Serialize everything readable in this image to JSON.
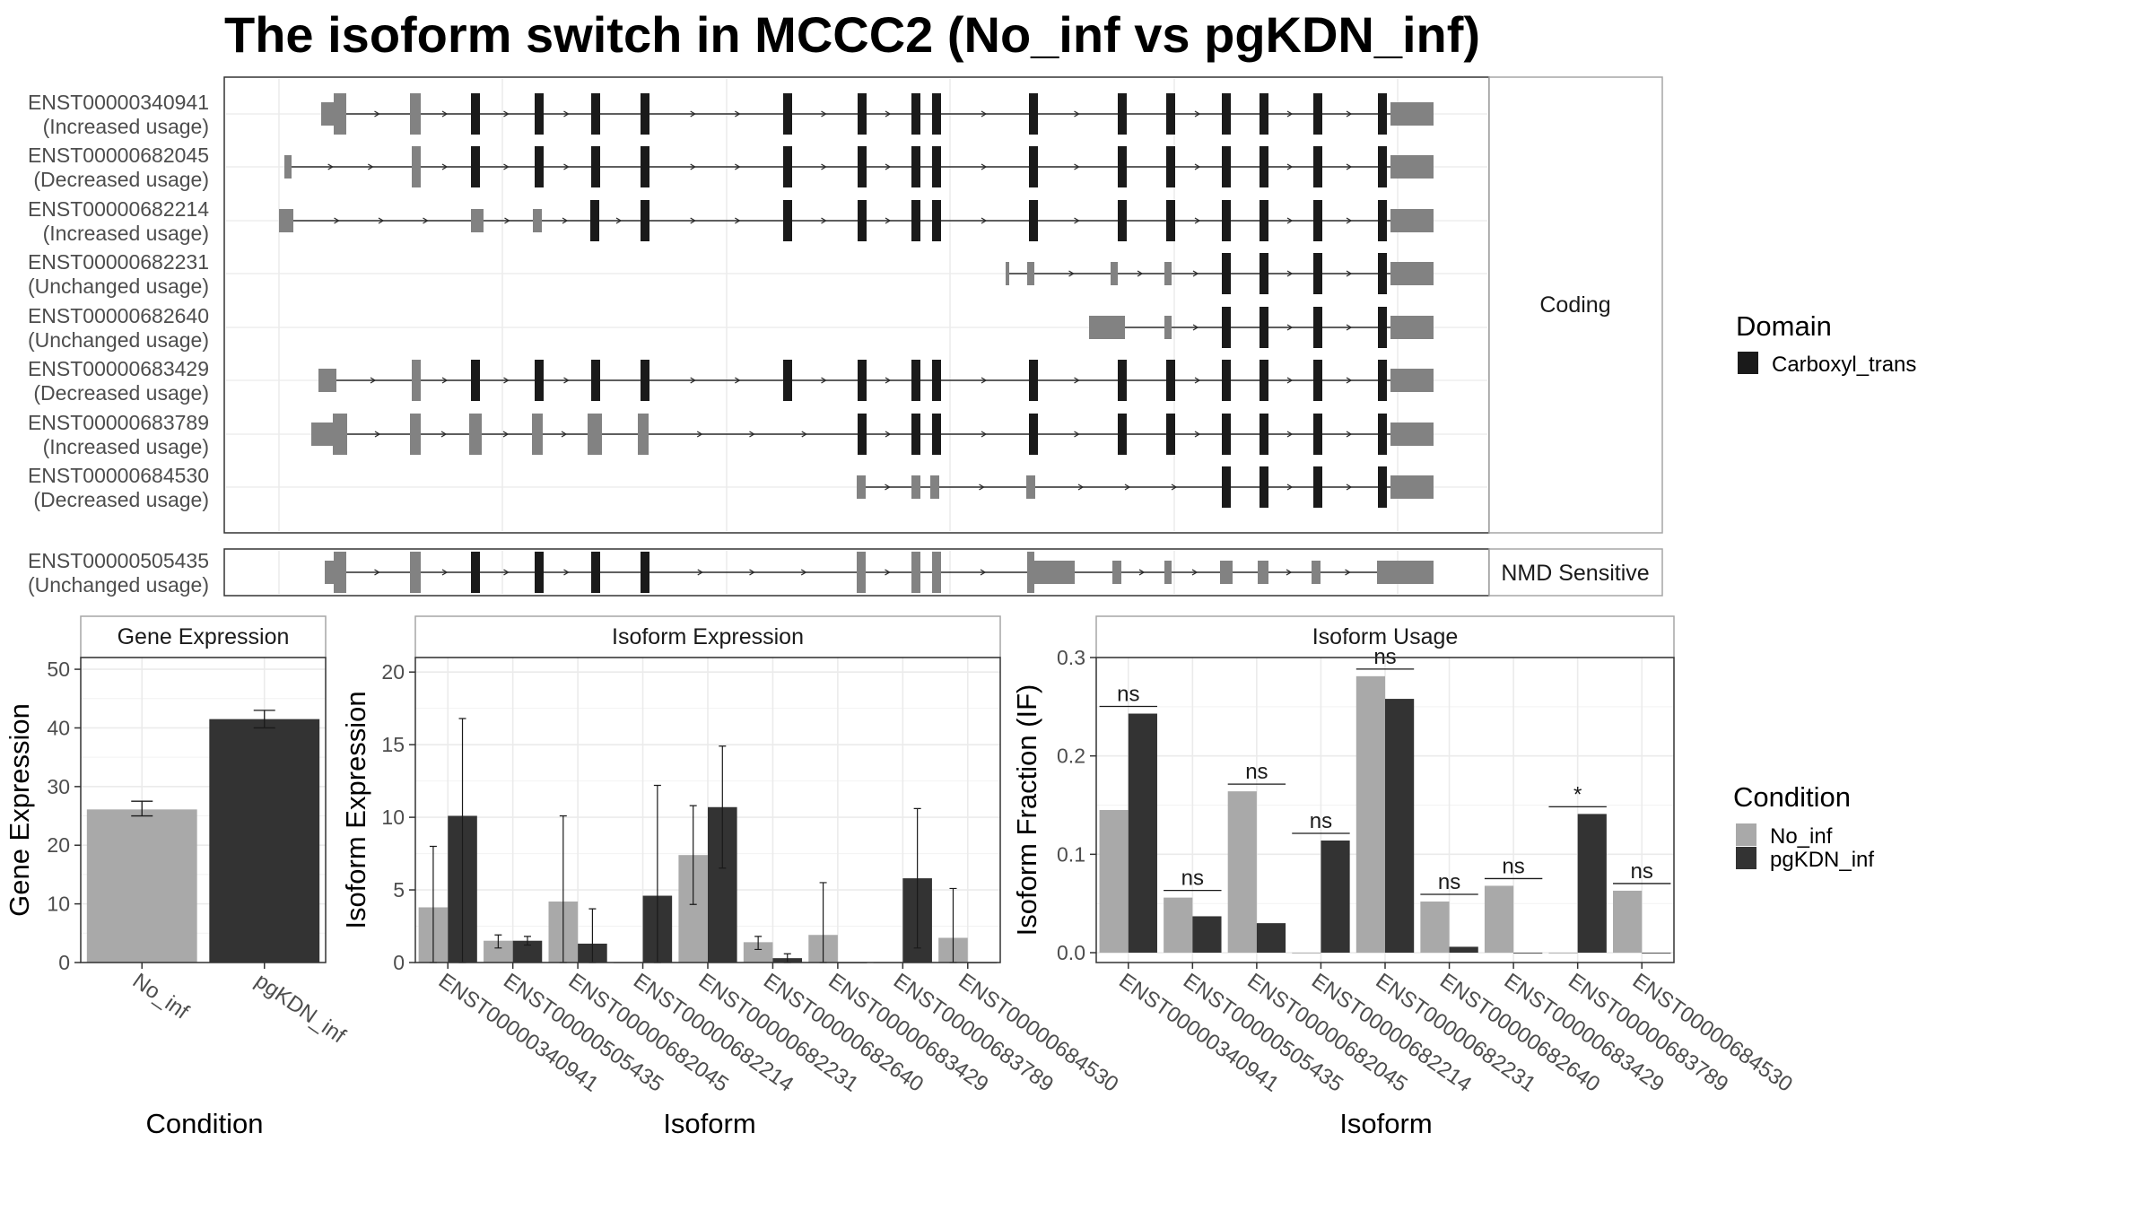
{
  "title": "The isoform switch in MCCC2 (No_inf vs pgKDN_inf)",
  "colors": {
    "no_inf": "#a9a9a9",
    "pgkdn_inf": "#333333",
    "domain": "#1a1a1a",
    "noncoding": "#828282",
    "intron": "#2b2b2b",
    "grid": "#ebebeb",
    "panel_border": "#333333",
    "strip_border": "#a6a6a6"
  },
  "structure": {
    "facets": {
      "coding": "Coding",
      "nmd": "NMD Sensitive"
    },
    "coding_transcripts": [
      {
        "id": "ENST00000340941",
        "usage": "(Increased usage)"
      },
      {
        "id": "ENST00000682045",
        "usage": "(Decreased usage)"
      },
      {
        "id": "ENST00000682214",
        "usage": "(Increased usage)"
      },
      {
        "id": "ENST00000682231",
        "usage": "(Unchanged usage)"
      },
      {
        "id": "ENST00000682640",
        "usage": "(Unchanged usage)"
      },
      {
        "id": "ENST00000683429",
        "usage": "(Decreased usage)"
      },
      {
        "id": "ENST00000683789",
        "usage": "(Increased usage)"
      },
      {
        "id": "ENST00000684530",
        "usage": "(Decreased usage)"
      }
    ],
    "nmd_transcripts": [
      {
        "id": "ENST00000505435",
        "usage": "(Unchanged usage)"
      }
    ]
  },
  "legend": {
    "domain_title": "Domain",
    "domain_items": [
      {
        "label": "Carboxyl_trans",
        "color": "#1a1a1a"
      }
    ],
    "condition_title": "Condition",
    "condition_items": [
      {
        "label": "No_inf",
        "color": "#a9a9a9"
      },
      {
        "label": "pgKDN_inf",
        "color": "#333333"
      }
    ]
  },
  "chart_data": [
    {
      "type": "bar",
      "title": "Gene Expression",
      "xlabel": "Condition",
      "ylabel": "Gene Expression",
      "ylim": [
        0,
        52
      ],
      "yticks": [
        0,
        10,
        20,
        30,
        40,
        50
      ],
      "categories": [
        "No_inf",
        "pgKDN_inf"
      ],
      "values": [
        26.1,
        41.5
      ],
      "errors": [
        [
          25,
          27.5
        ],
        [
          40,
          43
        ]
      ]
    },
    {
      "type": "bar",
      "title": "Isoform Expression",
      "xlabel": "Isoform",
      "ylabel": "Isoform Expression",
      "ylim": [
        0,
        21
      ],
      "yticks": [
        0,
        5,
        10,
        15,
        20
      ],
      "categories": [
        "ENST00000340941",
        "ENST00000505435",
        "ENST00000682045",
        "ENST00000682214",
        "ENST00000682231",
        "ENST00000682640",
        "ENST00000683429",
        "ENST00000683789",
        "ENST00000684530"
      ],
      "series": [
        {
          "name": "No_inf",
          "values": [
            3.8,
            1.5,
            4.2,
            0,
            7.4,
            1.4,
            1.9,
            0,
            1.7
          ],
          "errors": [
            [
              0,
              8.0
            ],
            [
              1.0,
              1.9
            ],
            [
              0,
              10.1
            ],
            null,
            [
              4.0,
              10.8
            ],
            [
              0.9,
              1.8
            ],
            [
              0,
              5.5
            ],
            null,
            [
              0,
              5.1
            ]
          ]
        },
        {
          "name": "pgKDN_inf",
          "values": [
            10.1,
            1.5,
            1.3,
            4.6,
            10.7,
            0.3,
            0,
            5.8,
            0
          ],
          "errors": [
            [
              0,
              16.8
            ],
            [
              1.2,
              1.8
            ],
            [
              0,
              3.7
            ],
            [
              0,
              12.2
            ],
            [
              6.5,
              14.9
            ],
            [
              0,
              0.6
            ],
            null,
            [
              1.0,
              10.6
            ],
            null
          ]
        }
      ]
    },
    {
      "type": "bar",
      "title": "Isoform Usage",
      "xlabel": "Isoform",
      "ylabel": "Isoform Fraction (IF)",
      "ylim": [
        -0.01,
        0.3
      ],
      "yticks": [
        0.0,
        0.1,
        0.2,
        0.3
      ],
      "ytick_labels": [
        "0.0",
        "0.1",
        "0.2",
        "0.3"
      ],
      "categories": [
        "ENST00000340941",
        "ENST00000505435",
        "ENST00000682045",
        "ENST00000682214",
        "ENST00000682231",
        "ENST00000682640",
        "ENST00000683429",
        "ENST00000683789",
        "ENST00000684530"
      ],
      "series": [
        {
          "name": "No_inf",
          "values": [
            0.145,
            0.056,
            0.164,
            0,
            0.281,
            0.052,
            0.068,
            0,
            0.063
          ]
        },
        {
          "name": "pgKDN_inf",
          "values": [
            0.243,
            0.037,
            0.03,
            0.114,
            0.258,
            0.006,
            0,
            0.141,
            0
          ]
        }
      ],
      "significance": [
        "ns",
        "ns",
        "ns",
        "ns",
        "ns",
        "ns",
        "ns",
        "*",
        "ns"
      ]
    }
  ]
}
